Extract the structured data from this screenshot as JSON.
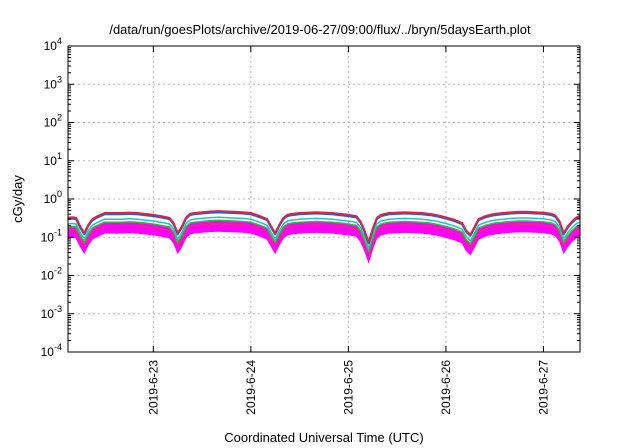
{
  "chart_data": {
    "type": "line",
    "title": "/data/run/goesPlots/archive/2019-06-27/09:00/flux/../bryn/5daysEarth.plot",
    "xlabel": "Coordinated Universal Time (UTC)",
    "ylabel": "cGy/day",
    "yscale": "log",
    "ylim": [
      0.0001,
      10000
    ],
    "yticks": [
      {
        "value": 0.0001,
        "base": "10",
        "exp": "-4"
      },
      {
        "value": 0.001,
        "base": "10",
        "exp": "-3"
      },
      {
        "value": 0.01,
        "base": "10",
        "exp": "-2"
      },
      {
        "value": 0.1,
        "base": "10",
        "exp": "-1"
      },
      {
        "value": 1,
        "base": "10",
        "exp": "0"
      },
      {
        "value": 10,
        "base": "10",
        "exp": "1"
      },
      {
        "value": 100,
        "base": "10",
        "exp": "2"
      },
      {
        "value": 1000,
        "base": "10",
        "exp": "3"
      },
      {
        "value": 10000,
        "base": "10",
        "exp": "4"
      }
    ],
    "xlim": [
      "2019-06-22T03:00",
      "2019-06-27T09:00"
    ],
    "xticks": [
      {
        "value": "2019-06-23T00:00",
        "label": "2019-6-23"
      },
      {
        "value": "2019-06-24T00:00",
        "label": "2019-6-24"
      },
      {
        "value": "2019-06-25T00:00",
        "label": "2019-6-25"
      },
      {
        "value": "2019-06-26T00:00",
        "label": "2019-6-26"
      },
      {
        "value": "2019-06-27T00:00",
        "label": "2019-6-27"
      }
    ],
    "grid": true,
    "legend": "none",
    "x": [
      "2019-06-22T03:00",
      "2019-06-22T04:00",
      "2019-06-22T05:00",
      "2019-06-22T06:00",
      "2019-06-22T07:00",
      "2019-06-22T08:00",
      "2019-06-22T09:00",
      "2019-06-22T10:00",
      "2019-06-22T11:00",
      "2019-06-22T12:00",
      "2019-06-22T14:00",
      "2019-06-22T16:00",
      "2019-06-22T18:00",
      "2019-06-22T20:00",
      "2019-06-22T22:00",
      "2019-06-23T00:00",
      "2019-06-23T02:00",
      "2019-06-23T04:00",
      "2019-06-23T05:00",
      "2019-06-23T06:00",
      "2019-06-23T07:00",
      "2019-06-23T08:00",
      "2019-06-23T09:00",
      "2019-06-23T10:00",
      "2019-06-23T12:00",
      "2019-06-23T14:00",
      "2019-06-23T16:00",
      "2019-06-23T18:00",
      "2019-06-23T20:00",
      "2019-06-23T22:00",
      "2019-06-24T00:00",
      "2019-06-24T02:00",
      "2019-06-24T04:00",
      "2019-06-24T05:00",
      "2019-06-24T06:00",
      "2019-06-24T07:00",
      "2019-06-24T08:00",
      "2019-06-24T09:00",
      "2019-06-24T10:00",
      "2019-06-24T12:00",
      "2019-06-24T14:00",
      "2019-06-24T16:00",
      "2019-06-24T18:00",
      "2019-06-24T20:00",
      "2019-06-24T22:00",
      "2019-06-25T00:00",
      "2019-06-25T02:00",
      "2019-06-25T03:00",
      "2019-06-25T04:00",
      "2019-06-25T05:00",
      "2019-06-25T06:00",
      "2019-06-25T07:00",
      "2019-06-25T08:00",
      "2019-06-25T10:00",
      "2019-06-25T12:00",
      "2019-06-25T14:00",
      "2019-06-25T16:00",
      "2019-06-25T18:00",
      "2019-06-25T20:00",
      "2019-06-25T22:00",
      "2019-06-26T00:00",
      "2019-06-26T02:00",
      "2019-06-26T04:00",
      "2019-06-26T05:00",
      "2019-06-26T06:00",
      "2019-06-26T07:00",
      "2019-06-26T08:00",
      "2019-06-26T10:00",
      "2019-06-26T12:00",
      "2019-06-26T14:00",
      "2019-06-26T16:00",
      "2019-06-26T18:00",
      "2019-06-26T20:00",
      "2019-06-26T22:00",
      "2019-06-27T00:00",
      "2019-06-27T02:00",
      "2019-06-27T03:00",
      "2019-06-27T04:00",
      "2019-06-27T05:00",
      "2019-06-27T06:00",
      "2019-06-27T07:00",
      "2019-06-27T08:00",
      "2019-06-27T09:00"
    ],
    "base": [
      0.3,
      0.31,
      0.3,
      0.18,
      0.12,
      0.2,
      0.28,
      0.32,
      0.36,
      0.4,
      0.4,
      0.4,
      0.41,
      0.4,
      0.38,
      0.36,
      0.33,
      0.3,
      0.22,
      0.12,
      0.18,
      0.3,
      0.38,
      0.4,
      0.42,
      0.44,
      0.45,
      0.44,
      0.43,
      0.42,
      0.4,
      0.34,
      0.28,
      0.18,
      0.12,
      0.2,
      0.3,
      0.36,
      0.38,
      0.4,
      0.41,
      0.42,
      0.41,
      0.4,
      0.38,
      0.36,
      0.33,
      0.24,
      0.14,
      0.07,
      0.16,
      0.3,
      0.36,
      0.4,
      0.41,
      0.42,
      0.41,
      0.4,
      0.38,
      0.35,
      0.31,
      0.27,
      0.22,
      0.14,
      0.11,
      0.17,
      0.28,
      0.34,
      0.38,
      0.4,
      0.42,
      0.43,
      0.43,
      0.42,
      0.41,
      0.38,
      0.34,
      0.24,
      0.12,
      0.18,
      0.24,
      0.3,
      0.34
    ],
    "series": [
      {
        "color": "#e8203c",
        "scale": 1.08,
        "width": 1.8
      },
      {
        "color": "#2b5cd6",
        "scale": 1.0,
        "width": 2.2
      },
      {
        "color": "#22c6c0",
        "scale": 0.74,
        "width": 1.5
      },
      {
        "color": "#2fbf35",
        "scale": 0.62,
        "width": 1.4
      },
      {
        "color": "#e0307a",
        "scale": 0.5,
        "width": 1.4
      }
    ],
    "envelope": {
      "color": "#ff00ff",
      "lower_scale": 0.32,
      "upper_scale": 0.6
    }
  }
}
